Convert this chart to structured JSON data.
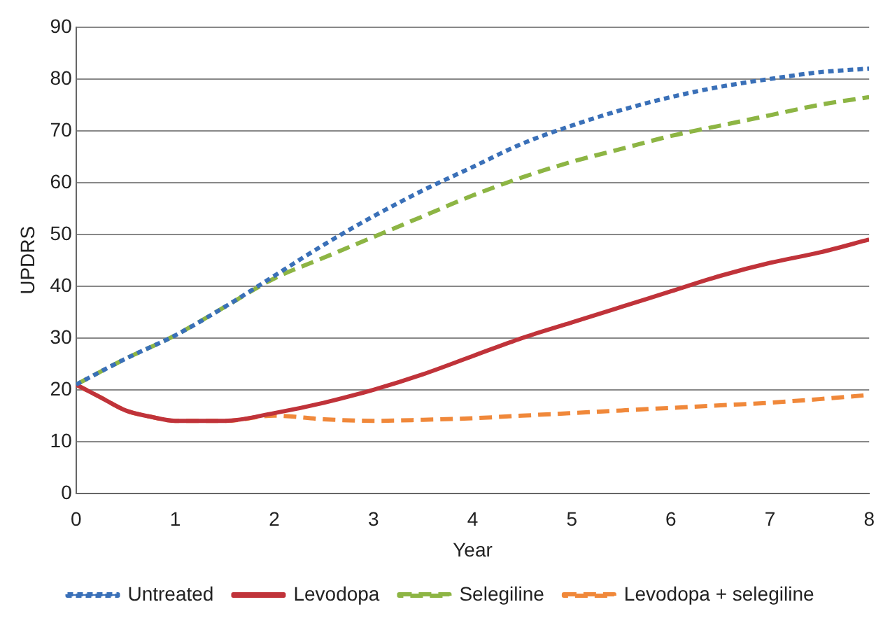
{
  "chart_data": {
    "type": "line",
    "xlabel": "Year",
    "ylabel": "UPDRS",
    "xlim": [
      0,
      8
    ],
    "xticks": [
      0,
      1,
      2,
      3,
      4,
      5,
      6,
      7,
      8
    ],
    "ylim": [
      0,
      90
    ],
    "yticks": [
      0,
      10,
      20,
      30,
      40,
      50,
      60,
      70,
      80,
      90
    ],
    "grid": "y",
    "legend": "bottom",
    "marker": "none",
    "series": [
      {
        "name": "Untreated",
        "color": "#3a70b8",
        "line_style": "dotted",
        "x": [
          0,
          0.5,
          1,
          1.5,
          2,
          2.5,
          3,
          3.5,
          4,
          4.5,
          5,
          5.5,
          6,
          6.5,
          7,
          7.5,
          8
        ],
        "values": [
          21,
          26,
          30.5,
          36,
          42,
          48,
          53.5,
          58.5,
          63,
          67.5,
          71,
          74,
          76.5,
          78.5,
          80,
          81.3,
          82
        ]
      },
      {
        "name": "Levodopa",
        "color": "#c0333a",
        "line_style": "solid",
        "x": [
          0,
          0.25,
          0.5,
          0.75,
          1,
          1.5,
          2,
          2.5,
          3,
          3.5,
          4,
          4.5,
          5,
          5.5,
          6,
          6.5,
          7,
          7.5,
          8
        ],
        "values": [
          21,
          18.5,
          16,
          14.8,
          14,
          14,
          15.5,
          17.5,
          20,
          23,
          26.5,
          30,
          33,
          36,
          39,
          42,
          44.5,
          46.5,
          49
        ]
      },
      {
        "name": "Selegiline",
        "color": "#8db544",
        "line_style": "dashed",
        "x": [
          0,
          0.5,
          1,
          1.5,
          2,
          2.5,
          3,
          3.5,
          4,
          4.5,
          5,
          5.5,
          6,
          6.5,
          7,
          7.5,
          8
        ],
        "values": [
          21,
          26,
          30.5,
          36,
          41.5,
          45.5,
          49.5,
          53.5,
          57.5,
          61,
          64,
          66.5,
          69,
          71,
          73,
          75,
          76.5
        ]
      },
      {
        "name": "Levodopa + selegiline",
        "color": "#f0883a",
        "line_style": "dashed",
        "x": [
          0,
          0.25,
          0.5,
          0.75,
          1,
          1.5,
          2,
          2.5,
          3,
          3.5,
          4,
          4.5,
          5,
          5.5,
          6,
          6.5,
          7,
          7.5,
          8
        ],
        "values": [
          21,
          18.5,
          16,
          14.8,
          14,
          14,
          15,
          14.3,
          14,
          14.2,
          14.5,
          15,
          15.5,
          16,
          16.5,
          17,
          17.5,
          18.2,
          19
        ]
      }
    ]
  }
}
